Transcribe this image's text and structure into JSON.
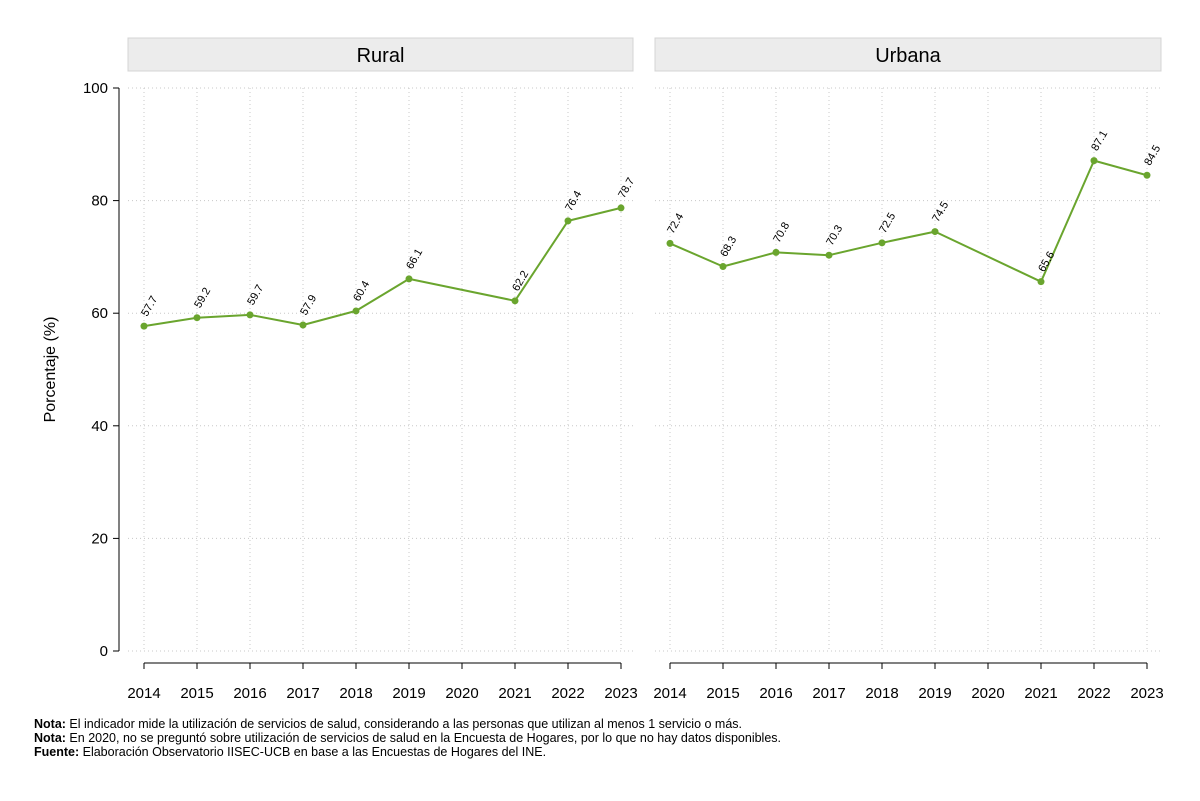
{
  "chart_data": {
    "type": "line",
    "ylabel": "Porcentaje (%)",
    "ylim": [
      0,
      100
    ],
    "yticks": [
      0,
      20,
      40,
      60,
      80,
      100
    ],
    "x": [
      2014,
      2015,
      2016,
      2017,
      2018,
      2019,
      2020,
      2021,
      2022,
      2023
    ],
    "line_color": "#6aa52e",
    "panel_header_color": "#ececec",
    "panels": [
      {
        "title": "Rural",
        "series": [
          {
            "x": 2014,
            "y": 57.7,
            "label": "57.7"
          },
          {
            "x": 2015,
            "y": 59.2,
            "label": "59.2"
          },
          {
            "x": 2016,
            "y": 59.7,
            "label": "59.7"
          },
          {
            "x": 2017,
            "y": 57.9,
            "label": "57.9"
          },
          {
            "x": 2018,
            "y": 60.4,
            "label": "60.4"
          },
          {
            "x": 2019,
            "y": 66.1,
            "label": "66.1"
          },
          {
            "x": 2021,
            "y": 62.2,
            "label": "62.2"
          },
          {
            "x": 2022,
            "y": 76.4,
            "label": "76.4"
          },
          {
            "x": 2023,
            "y": 78.7,
            "label": "78.7"
          }
        ]
      },
      {
        "title": "Urbana",
        "series": [
          {
            "x": 2014,
            "y": 72.4,
            "label": "72.4"
          },
          {
            "x": 2015,
            "y": 68.3,
            "label": "68.3"
          },
          {
            "x": 2016,
            "y": 70.8,
            "label": "70.8"
          },
          {
            "x": 2017,
            "y": 70.3,
            "label": "70.3"
          },
          {
            "x": 2018,
            "y": 72.5,
            "label": "72.5"
          },
          {
            "x": 2019,
            "y": 74.5,
            "label": "74.5"
          },
          {
            "x": 2021,
            "y": 65.6,
            "label": "65.6"
          },
          {
            "x": 2022,
            "y": 87.1,
            "label": "87.1"
          },
          {
            "x": 2023,
            "y": 84.5,
            "label": "84.5"
          }
        ]
      }
    ]
  },
  "notes": {
    "note1_label": "Nota:",
    "note1_text": " El indicador mide la utilización de servicios de salud, considerando a las personas que utilizan al menos 1 servicio o más.",
    "note2_label": "Nota:",
    "note2_text": " En 2020, no se preguntó sobre utilización de servicios de salud en la Encuesta de Hogares, por lo que no hay datos disponibles.",
    "source_label": "Fuente:",
    "source_text": " Elaboración Observatorio IISEC-UCB en base a las Encuestas de Hogares del INE."
  }
}
